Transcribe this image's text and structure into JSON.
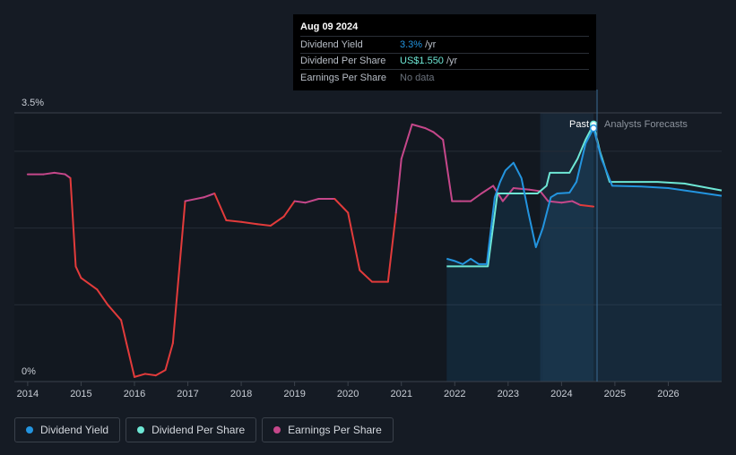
{
  "colors": {
    "background": "#151b24",
    "dividend_yield": "#2394df",
    "dividend_per_share": "#6ee7d5",
    "earnings_per_share": "#c5478a",
    "earnings_low": "#e23b3b",
    "forecast_band": "#1b3246"
  },
  "tooltip": {
    "date": "Aug 09 2024",
    "rows": [
      {
        "label": "Dividend Yield",
        "value": "3.3%",
        "unit": "/yr"
      },
      {
        "label": "Dividend Per Share",
        "value": "US$1.550",
        "unit": "/yr"
      },
      {
        "label": "Earnings Per Share",
        "value": "No data",
        "unit": ""
      }
    ]
  },
  "legend": [
    {
      "label": "Dividend Yield",
      "color": "#2394df"
    },
    {
      "label": "Dividend Per Share",
      "color": "#6ee7d5"
    },
    {
      "label": "Earnings Per Share",
      "color": "#c5478a"
    }
  ],
  "chart_data": {
    "type": "line",
    "y_top_label": "3.5%",
    "y_bottom_label": "0%",
    "ylim": [
      0,
      3.5
    ],
    "xlim": [
      2013.75,
      2027.0
    ],
    "x_ticks": [
      "2014",
      "2015",
      "2016",
      "2017",
      "2018",
      "2019",
      "2020",
      "2021",
      "2022",
      "2023",
      "2024",
      "2025",
      "2026"
    ],
    "past_label": "Past",
    "forecast_label": "Analysts Forecasts",
    "forecast_start": 2024.6,
    "grid": true,
    "series": [
      {
        "name": "Dividend Yield",
        "points": [
          [
            2021.85,
            1.6
          ],
          [
            2022.0,
            1.57
          ],
          [
            2022.15,
            1.53
          ],
          [
            2022.3,
            1.6
          ],
          [
            2022.45,
            1.53
          ],
          [
            2022.6,
            1.53
          ],
          [
            2022.75,
            2.4
          ],
          [
            2022.85,
            2.6
          ],
          [
            2022.95,
            2.75
          ],
          [
            2023.1,
            2.85
          ],
          [
            2023.25,
            2.65
          ],
          [
            2023.38,
            2.2
          ],
          [
            2023.52,
            1.75
          ],
          [
            2023.65,
            2.0
          ],
          [
            2023.8,
            2.4
          ],
          [
            2023.92,
            2.45
          ],
          [
            2024.15,
            2.46
          ],
          [
            2024.28,
            2.6
          ],
          [
            2024.45,
            3.1
          ],
          [
            2024.6,
            3.3
          ],
          [
            2024.75,
            2.9
          ],
          [
            2024.95,
            2.55
          ],
          [
            2025.5,
            2.54
          ],
          [
            2026.0,
            2.52
          ],
          [
            2026.5,
            2.47
          ],
          [
            2027.0,
            2.42
          ]
        ]
      },
      {
        "name": "Dividend Per Share",
        "points": [
          [
            2021.85,
            1.5
          ],
          [
            2022.2,
            1.5
          ],
          [
            2022.45,
            1.5
          ],
          [
            2022.62,
            1.5
          ],
          [
            2022.8,
            2.45
          ],
          [
            2023.0,
            2.45
          ],
          [
            2023.35,
            2.45
          ],
          [
            2023.55,
            2.45
          ],
          [
            2023.72,
            2.55
          ],
          [
            2023.78,
            2.72
          ],
          [
            2024.0,
            2.72
          ],
          [
            2024.15,
            2.72
          ],
          [
            2024.3,
            2.9
          ],
          [
            2024.45,
            3.15
          ],
          [
            2024.6,
            3.35
          ],
          [
            2024.72,
            3.0
          ],
          [
            2024.9,
            2.6
          ],
          [
            2025.3,
            2.6
          ],
          [
            2025.8,
            2.6
          ],
          [
            2026.3,
            2.58
          ],
          [
            2027.0,
            2.49
          ]
        ]
      },
      {
        "name": "Earnings Per Share",
        "points": [
          [
            2014.0,
            2.7
          ],
          [
            2014.3,
            2.7
          ],
          [
            2014.5,
            2.72
          ],
          [
            2014.7,
            2.7
          ],
          [
            2014.8,
            2.65
          ],
          [
            2014.9,
            1.5
          ],
          [
            2015.0,
            1.35
          ],
          [
            2015.3,
            1.2
          ],
          [
            2015.5,
            1.0
          ],
          [
            2015.75,
            0.8
          ],
          [
            2015.85,
            0.5
          ],
          [
            2016.0,
            0.06
          ],
          [
            2016.2,
            0.1
          ],
          [
            2016.4,
            0.08
          ],
          [
            2016.58,
            0.15
          ],
          [
            2016.72,
            0.5
          ],
          [
            2016.95,
            2.35
          ],
          [
            2017.3,
            2.4
          ],
          [
            2017.5,
            2.45
          ],
          [
            2017.72,
            2.1
          ],
          [
            2018.0,
            2.08
          ],
          [
            2018.3,
            2.05
          ],
          [
            2018.55,
            2.03
          ],
          [
            2018.8,
            2.15
          ],
          [
            2019.0,
            2.35
          ],
          [
            2019.2,
            2.33
          ],
          [
            2019.45,
            2.38
          ],
          [
            2019.75,
            2.38
          ],
          [
            2020.0,
            2.2
          ],
          [
            2020.22,
            1.45
          ],
          [
            2020.45,
            1.3
          ],
          [
            2020.75,
            1.3
          ],
          [
            2020.9,
            2.2
          ],
          [
            2021.0,
            2.9
          ],
          [
            2021.2,
            3.35
          ],
          [
            2021.45,
            3.3
          ],
          [
            2021.6,
            3.25
          ],
          [
            2021.78,
            3.15
          ],
          [
            2021.95,
            2.35
          ],
          [
            2022.1,
            2.35
          ],
          [
            2022.3,
            2.35
          ],
          [
            2022.5,
            2.45
          ],
          [
            2022.72,
            2.55
          ],
          [
            2022.9,
            2.35
          ],
          [
            2023.1,
            2.52
          ],
          [
            2023.4,
            2.5
          ],
          [
            2023.6,
            2.48
          ],
          [
            2023.75,
            2.35
          ],
          [
            2024.0,
            2.33
          ],
          [
            2024.2,
            2.35
          ],
          [
            2024.35,
            2.3
          ],
          [
            2024.6,
            2.28
          ]
        ]
      }
    ],
    "earnings_low_threshold": 2.3
  }
}
